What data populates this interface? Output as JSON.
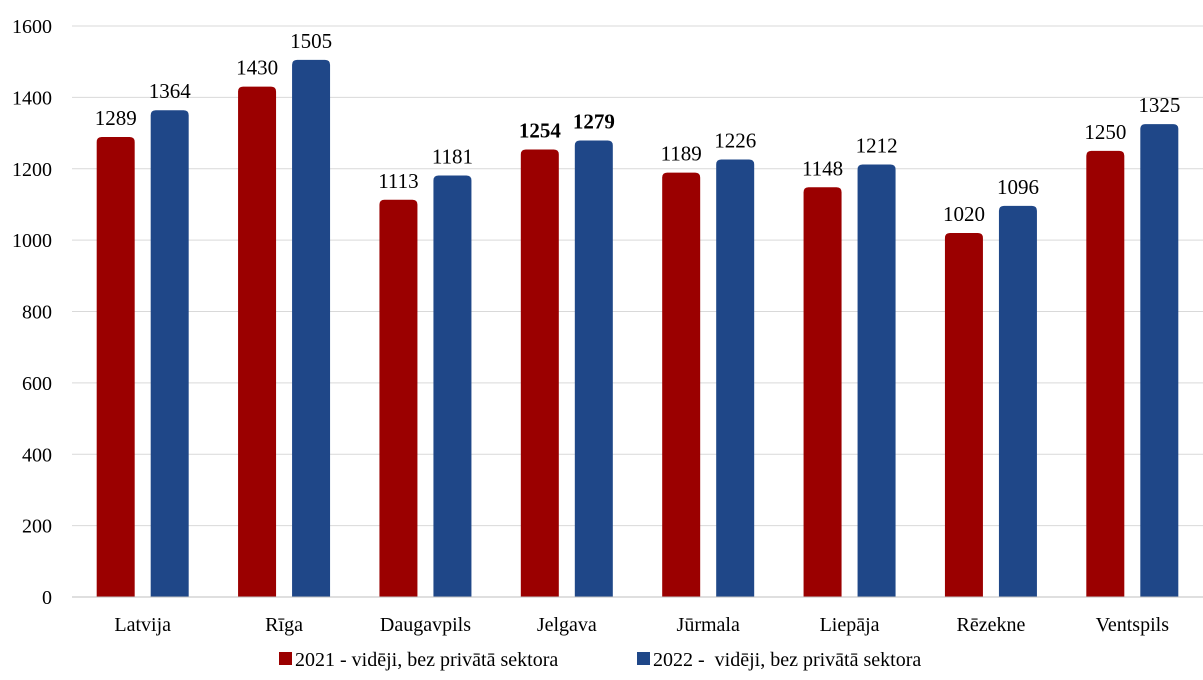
{
  "chart_data": {
    "type": "bar",
    "title": "",
    "xlabel": "",
    "ylabel": "",
    "ylim": [
      0,
      1600
    ],
    "yticks": [
      0,
      200,
      400,
      600,
      800,
      1000,
      1200,
      1400,
      1600
    ],
    "grid": true,
    "legend_position": "bottom",
    "categories": [
      "Latvija",
      "Rīga",
      "Daugavpils",
      "Jelgava",
      "Jūrmala",
      "Liepāja",
      "Rēzekne",
      "Ventspils"
    ],
    "series": [
      {
        "name": "2021 - vidēji, bez privātā sektora",
        "color": "#9b0000",
        "values": [
          1289,
          1430,
          1113,
          1254,
          1189,
          1148,
          1020,
          1250
        ]
      },
      {
        "name": "2022 -  vidēji, bez privātā sektora",
        "color": "#1f4788",
        "values": [
          1364,
          1505,
          1181,
          1279,
          1226,
          1212,
          1096,
          1325
        ]
      }
    ],
    "bold_label_categories": [
      "Jelgava"
    ]
  }
}
